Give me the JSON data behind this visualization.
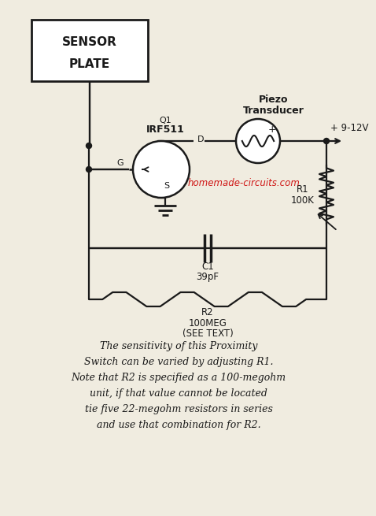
{
  "bg_color": "#f0ece0",
  "line_color": "#1a1a1a",
  "text_color": "#1a1a1a",
  "red_text_color": "#cc0000",
  "caption_lines": [
    "The sensitivity of this Proximity",
    "Switch can be varied by adjusting R1.",
    "Note that R2 is specified as a 100-megohm",
    "unit, if that value cannot be located",
    "tie five 22-megohm resistors in series",
    "and use that combination for R2."
  ],
  "sensor_box_text": [
    "SENSOR",
    "PLATE"
  ],
  "q1_label": "Q1",
  "q1_part": "IRF511",
  "piezo_label_1": "Piezo",
  "piezo_label_2": "Transducer",
  "voltage_label": "+ 9-12V",
  "r1_label_1": "R1",
  "r1_label_2": "100K",
  "c1_label_1": "C1",
  "c1_label_2": "39pF",
  "r2_label_1": "R2",
  "r2_label_2": "100MEG",
  "r2_label_3": "(SEE TEXT)",
  "watermark": "homemade-circuits.com",
  "d_label": "D",
  "g_label": "G",
  "s_label": "S"
}
